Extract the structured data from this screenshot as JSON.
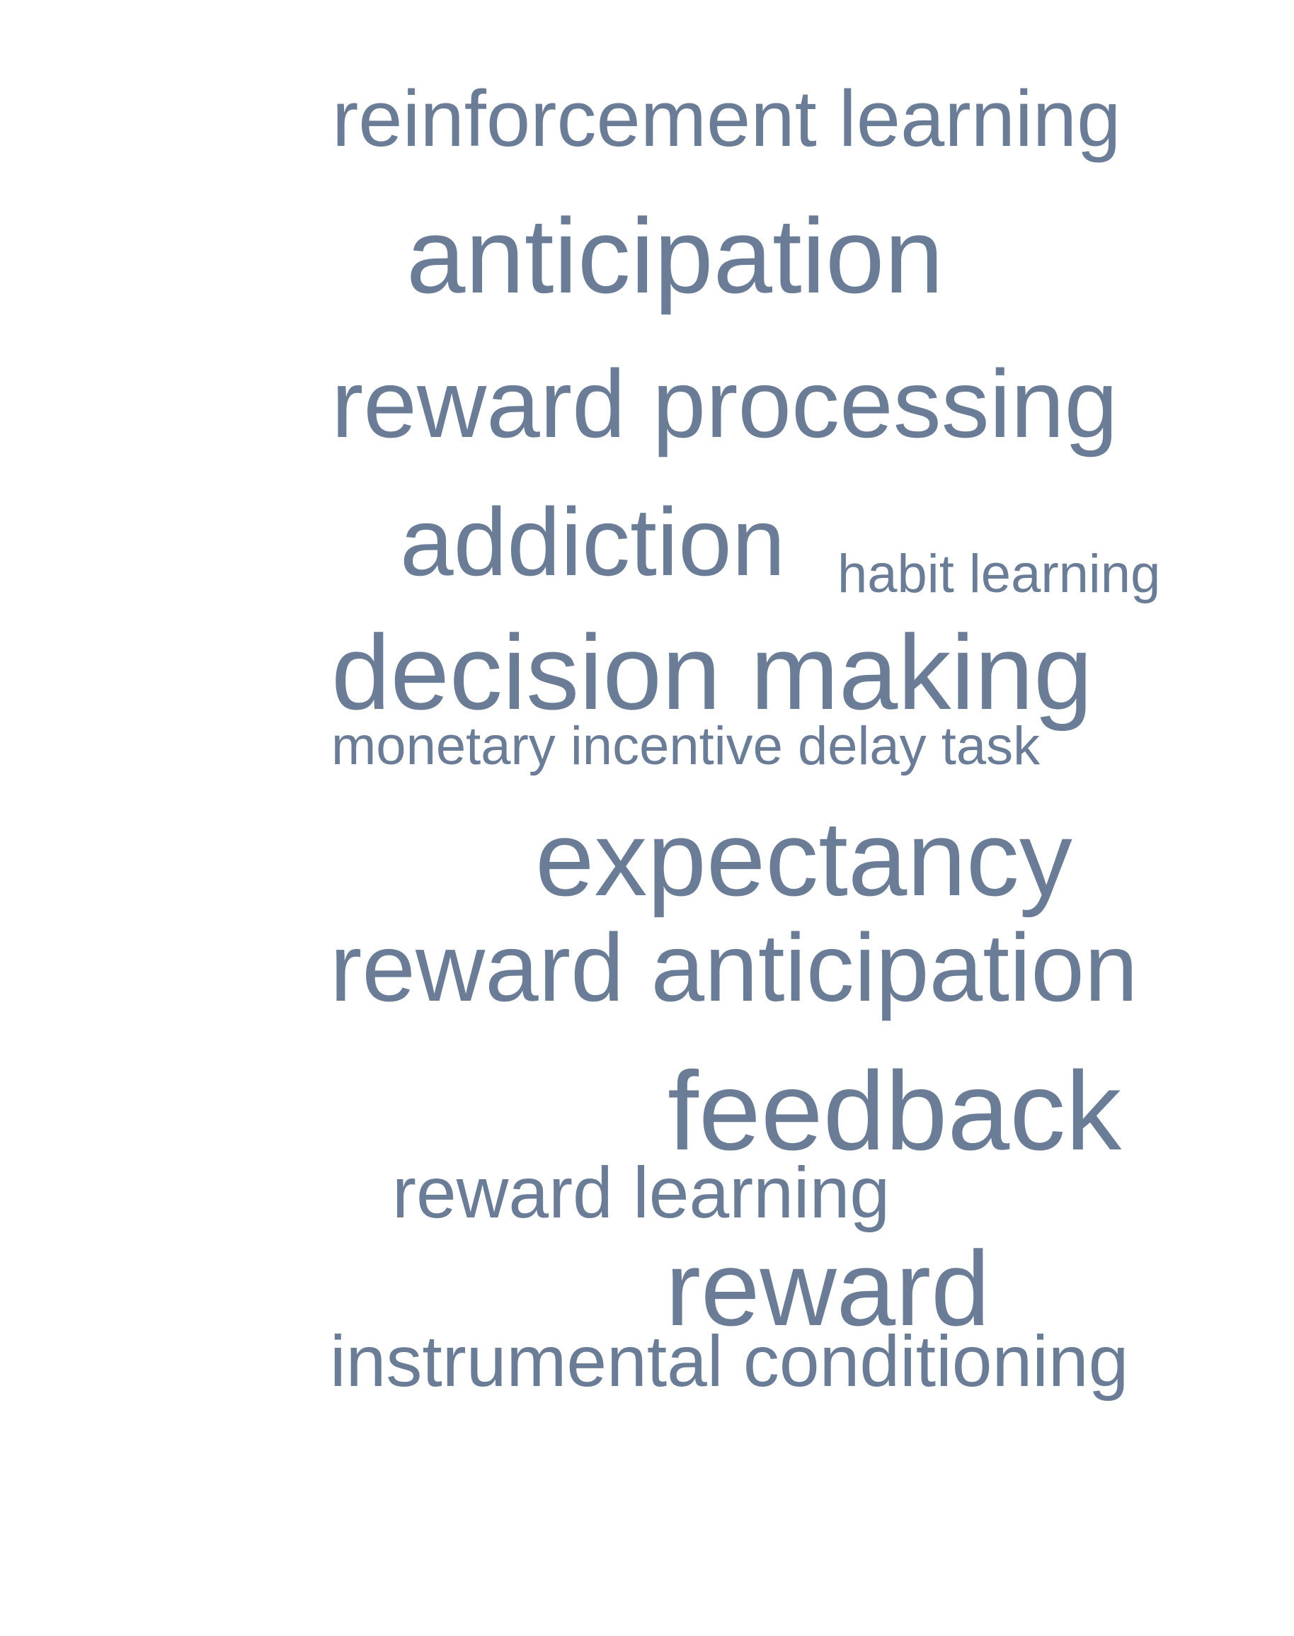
{
  "word_cloud": {
    "text_color": "#6b7d96",
    "terms": [
      "reinforcement learning",
      "anticipation",
      "reward processing",
      "addiction",
      "habit learning",
      "decision making",
      "monetary incentive delay task",
      "expectancy",
      "reward anticipation",
      "feedback",
      "reward learning",
      "reward",
      "instrumental conditioning"
    ]
  }
}
